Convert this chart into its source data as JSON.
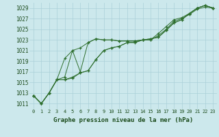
{
  "title": "Graphe pression niveau de la mer (hPa)",
  "bg_color": "#cce8ec",
  "grid_color": "#aad0d8",
  "line_color": "#2d6e2d",
  "marker": "+",
  "x_ticks": [
    0,
    1,
    2,
    3,
    4,
    5,
    6,
    7,
    8,
    9,
    10,
    11,
    12,
    13,
    14,
    15,
    16,
    17,
    18,
    19,
    20,
    21,
    22,
    23
  ],
  "y_ticks": [
    1011,
    1013,
    1015,
    1017,
    1019,
    1021,
    1023,
    1025,
    1027,
    1029
  ],
  "ylim": [
    1010.0,
    1030.0
  ],
  "xlim": [
    -0.5,
    23.5
  ],
  "series": [
    [
      1012.5,
      1011.0,
      1013.0,
      1015.5,
      1019.5,
      1021.0,
      1017.0,
      1022.5,
      1023.2,
      1023.0,
      1023.0,
      1022.8,
      1022.8,
      1022.8,
      1023.0,
      1023.2,
      1023.5,
      1024.8,
      1026.2,
      1026.8,
      1028.0,
      1029.0,
      1029.5,
      1029.0
    ],
    [
      1012.5,
      1011.0,
      1013.0,
      1015.5,
      1015.5,
      1016.0,
      1016.8,
      1017.2,
      1019.3,
      1021.0,
      1021.5,
      1021.8,
      1022.5,
      1022.5,
      1023.0,
      1023.0,
      1024.2,
      1025.5,
      1026.8,
      1027.2,
      1028.0,
      1029.0,
      1029.5,
      1029.0
    ],
    [
      1012.5,
      1011.0,
      1013.0,
      1015.5,
      1015.5,
      1015.8,
      1016.8,
      1017.2,
      1019.3,
      1021.0,
      1021.5,
      1021.8,
      1022.5,
      1022.5,
      1023.0,
      1023.0,
      1023.8,
      1025.0,
      1026.5,
      1027.0,
      1027.8,
      1028.8,
      1029.2,
      1029.0
    ],
    [
      1012.5,
      1011.0,
      1013.0,
      1015.5,
      1016.0,
      1021.0,
      1021.5,
      1022.5,
      1023.2,
      1023.0,
      1023.0,
      1022.8,
      1022.8,
      1022.8,
      1023.0,
      1023.2,
      1023.5,
      1024.8,
      1026.2,
      1026.8,
      1028.0,
      1029.0,
      1029.5,
      1029.0
    ]
  ]
}
